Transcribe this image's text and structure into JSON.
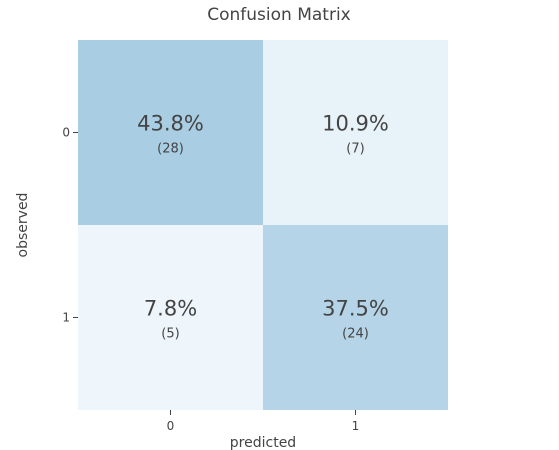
{
  "chart_data": {
    "type": "heatmap",
    "title": "Confusion Matrix",
    "xlabel": "predicted",
    "ylabel": "observed",
    "x_categories": [
      "0",
      "1"
    ],
    "y_categories": [
      "0",
      "1"
    ],
    "percent_labels": [
      [
        "43.8%",
        "10.9%"
      ],
      [
        "7.8%",
        "37.5%"
      ]
    ],
    "count_labels": [
      [
        "(28)",
        "(7)"
      ],
      [
        "(5)",
        "(24)"
      ]
    ],
    "values": [
      [
        28,
        7
      ],
      [
        5,
        24
      ]
    ],
    "percentages": [
      [
        43.8,
        10.9
      ],
      [
        7.8,
        37.5
      ]
    ],
    "colorscale": {
      "low": "#eef5fb",
      "high": "#a9cde3"
    }
  }
}
